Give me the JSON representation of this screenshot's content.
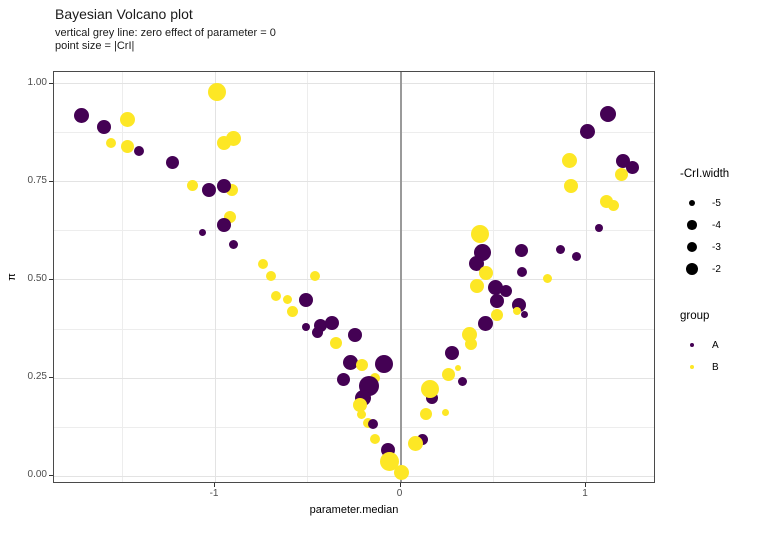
{
  "title": "Bayesian Volcano plot",
  "subtitle_line1": "vertical grey line: zero effect of parameter = 0",
  "subtitle_line2": "point size = |CrI|",
  "colors": {
    "group_A": "#440154",
    "group_B": "#FDE725",
    "refline": "#9a9a9a",
    "legend_dot": "#000000"
  },
  "axes": {
    "x": {
      "label": "parameter.median",
      "tick_labels": [
        "-1",
        "0",
        "1"
      ],
      "tick_values": [
        -1,
        0,
        1
      ],
      "minor_ticks": [
        -1.5,
        -0.5,
        0.5
      ],
      "range": [
        -1.868,
        1.377
      ]
    },
    "y": {
      "label": "π",
      "tick_labels": [
        "0.00",
        "0.25",
        "0.50",
        "0.75",
        "1.00"
      ],
      "tick_values": [
        0,
        0.25,
        0.5,
        0.75,
        1
      ],
      "minor_ticks": [
        0.125,
        0.375,
        0.625,
        0.875
      ],
      "range": [
        -0.0204,
        1.0306
      ]
    }
  },
  "legend": {
    "size": {
      "title": "-CrI.width",
      "items": [
        {
          "label": "-5",
          "d": 6.5
        },
        {
          "label": "-4",
          "d": 9.5
        },
        {
          "label": "-3",
          "d": 10.5
        },
        {
          "label": "-2",
          "d": 12
        }
      ]
    },
    "group": {
      "title": "group",
      "items": [
        {
          "label": "A",
          "color": "#440154",
          "d": 4.5
        },
        {
          "label": "B",
          "color": "#FDE725",
          "d": 4.5
        }
      ]
    }
  },
  "chart_data": {
    "type": "scatter",
    "title": "Bayesian Volcano plot",
    "xlabel": "parameter.median",
    "ylabel": "π",
    "xlim": [
      -1.868,
      1.377
    ],
    "ylim": [
      -0.02,
      1.03
    ],
    "refline_x": 0,
    "legend_position": "right",
    "grid": true,
    "series_key": "group (A = #440154 purple, B = #FDE725 yellow); s = point diameter px (size = |CrI|)",
    "points": [
      {
        "x": -1.72,
        "y": 0.92,
        "s": 15,
        "g": "A"
      },
      {
        "x": -1.6,
        "y": 0.89,
        "s": 14,
        "g": "A"
      },
      {
        "x": -1.47,
        "y": 0.91,
        "s": 15,
        "g": "B"
      },
      {
        "x": -1.56,
        "y": 0.85,
        "s": 10,
        "g": "B"
      },
      {
        "x": -1.47,
        "y": 0.84,
        "s": 13,
        "g": "B"
      },
      {
        "x": -1.41,
        "y": 0.83,
        "s": 10,
        "g": "A"
      },
      {
        "x": -1.23,
        "y": 0.8,
        "s": 13,
        "g": "A"
      },
      {
        "x": -0.99,
        "y": 0.98,
        "s": 18,
        "g": "B"
      },
      {
        "x": -0.95,
        "y": 0.85,
        "s": 14,
        "g": "B"
      },
      {
        "x": -0.9,
        "y": 0.86,
        "s": 15,
        "g": "B"
      },
      {
        "x": -1.12,
        "y": 0.74,
        "s": 11,
        "g": "B"
      },
      {
        "x": -1.03,
        "y": 0.73,
        "s": 14,
        "g": "A"
      },
      {
        "x": -0.91,
        "y": 0.73,
        "s": 12,
        "g": "B"
      },
      {
        "x": -0.95,
        "y": 0.74,
        "s": 14,
        "g": "A"
      },
      {
        "x": -0.92,
        "y": 0.66,
        "s": 12,
        "g": "B"
      },
      {
        "x": -0.95,
        "y": 0.64,
        "s": 14,
        "g": "A"
      },
      {
        "x": -1.07,
        "y": 0.62,
        "s": 7,
        "g": "A"
      },
      {
        "x": -0.9,
        "y": 0.59,
        "s": 9,
        "g": "A"
      },
      {
        "x": -0.74,
        "y": 0.54,
        "s": 10,
        "g": "B"
      },
      {
        "x": -0.7,
        "y": 0.51,
        "s": 10,
        "g": "B"
      },
      {
        "x": -0.46,
        "y": 0.51,
        "s": 10,
        "g": "B"
      },
      {
        "x": -0.67,
        "y": 0.46,
        "s": 10,
        "g": "B"
      },
      {
        "x": -0.61,
        "y": 0.45,
        "s": 9,
        "g": "B"
      },
      {
        "x": -0.51,
        "y": 0.45,
        "s": 14,
        "g": "A"
      },
      {
        "x": -0.58,
        "y": 0.42,
        "s": 11,
        "g": "B"
      },
      {
        "x": -0.51,
        "y": 0.38,
        "s": 8,
        "g": "A"
      },
      {
        "x": -0.43,
        "y": 0.385,
        "s": 13,
        "g": "A"
      },
      {
        "x": -0.37,
        "y": 0.39,
        "s": 14,
        "g": "A"
      },
      {
        "x": -0.45,
        "y": 0.365,
        "s": 11,
        "g": "A"
      },
      {
        "x": -0.35,
        "y": 0.34,
        "s": 12,
        "g": "B"
      },
      {
        "x": -0.245,
        "y": 0.36,
        "s": 14,
        "g": "A"
      },
      {
        "x": -0.27,
        "y": 0.29,
        "s": 15,
        "g": "A"
      },
      {
        "x": -0.21,
        "y": 0.283,
        "s": 12,
        "g": "B"
      },
      {
        "x": -0.09,
        "y": 0.286,
        "s": 18,
        "g": "A"
      },
      {
        "x": -0.31,
        "y": 0.245,
        "s": 13,
        "g": "A"
      },
      {
        "x": -0.14,
        "y": 0.25,
        "s": 10,
        "g": "B"
      },
      {
        "x": -0.17,
        "y": 0.23,
        "s": 20,
        "g": "A"
      },
      {
        "x": -0.2,
        "y": 0.2,
        "s": 16,
        "g": "A"
      },
      {
        "x": -0.22,
        "y": 0.18,
        "s": 14,
        "g": "B"
      },
      {
        "x": -0.21,
        "y": 0.158,
        "s": 9,
        "g": "B"
      },
      {
        "x": -0.175,
        "y": 0.135,
        "s": 10,
        "g": "B"
      },
      {
        "x": -0.148,
        "y": 0.133,
        "s": 10,
        "g": "A"
      },
      {
        "x": -0.14,
        "y": 0.095,
        "s": 10,
        "g": "B"
      },
      {
        "x": -0.067,
        "y": 0.066,
        "s": 14,
        "g": "A"
      },
      {
        "x": -0.062,
        "y": 0.038,
        "s": 19,
        "g": "B"
      },
      {
        "x": 0.003,
        "y": 0.01,
        "s": 15,
        "g": "B"
      },
      {
        "x": 0.121,
        "y": 0.092,
        "s": 11,
        "g": "A"
      },
      {
        "x": 0.078,
        "y": 0.084,
        "s": 15,
        "g": "B"
      },
      {
        "x": 0.137,
        "y": 0.158,
        "s": 12,
        "g": "B"
      },
      {
        "x": 0.245,
        "y": 0.163,
        "s": 7,
        "g": "B"
      },
      {
        "x": 0.17,
        "y": 0.2,
        "s": 12,
        "g": "A"
      },
      {
        "x": 0.159,
        "y": 0.222,
        "s": 18,
        "g": "B"
      },
      {
        "x": 0.26,
        "y": 0.26,
        "s": 13,
        "g": "B"
      },
      {
        "x": 0.31,
        "y": 0.276,
        "s": 6,
        "g": "B"
      },
      {
        "x": 0.278,
        "y": 0.314,
        "s": 14,
        "g": "A"
      },
      {
        "x": 0.332,
        "y": 0.24,
        "s": 9,
        "g": "A"
      },
      {
        "x": 0.43,
        "y": 0.617,
        "s": 18,
        "g": "B"
      },
      {
        "x": 0.44,
        "y": 0.571,
        "s": 17,
        "g": "A"
      },
      {
        "x": 0.41,
        "y": 0.541,
        "s": 15,
        "g": "A"
      },
      {
        "x": 0.46,
        "y": 0.518,
        "s": 14,
        "g": "B"
      },
      {
        "x": 0.41,
        "y": 0.485,
        "s": 14,
        "g": "B"
      },
      {
        "x": 0.51,
        "y": 0.482,
        "s": 15,
        "g": "A"
      },
      {
        "x": 0.57,
        "y": 0.472,
        "s": 12,
        "g": "A"
      },
      {
        "x": 0.52,
        "y": 0.446,
        "s": 14,
        "g": "A"
      },
      {
        "x": 0.64,
        "y": 0.436,
        "s": 14,
        "g": "A"
      },
      {
        "x": 0.63,
        "y": 0.421,
        "s": 8,
        "g": "B"
      },
      {
        "x": 0.67,
        "y": 0.411,
        "s": 7,
        "g": "A"
      },
      {
        "x": 0.52,
        "y": 0.411,
        "s": 12,
        "g": "B"
      },
      {
        "x": 0.46,
        "y": 0.388,
        "s": 15,
        "g": "A"
      },
      {
        "x": 0.37,
        "y": 0.362,
        "s": 15,
        "g": "B"
      },
      {
        "x": 0.38,
        "y": 0.337,
        "s": 12,
        "g": "B"
      },
      {
        "x": 0.65,
        "y": 0.574,
        "s": 13,
        "g": "A"
      },
      {
        "x": 0.655,
        "y": 0.52,
        "s": 10,
        "g": "A"
      },
      {
        "x": 0.79,
        "y": 0.505,
        "s": 9,
        "g": "B"
      },
      {
        "x": 0.86,
        "y": 0.577,
        "s": 9,
        "g": "A"
      },
      {
        "x": 0.95,
        "y": 0.561,
        "s": 9,
        "g": "A"
      },
      {
        "x": 1.12,
        "y": 0.923,
        "s": 16,
        "g": "A"
      },
      {
        "x": 1.01,
        "y": 0.878,
        "s": 15,
        "g": "A"
      },
      {
        "x": 0.91,
        "y": 0.806,
        "s": 15,
        "g": "B"
      },
      {
        "x": 1.2,
        "y": 0.804,
        "s": 14,
        "g": "A"
      },
      {
        "x": 1.25,
        "y": 0.786,
        "s": 13,
        "g": "A"
      },
      {
        "x": 1.19,
        "y": 0.77,
        "s": 13,
        "g": "B"
      },
      {
        "x": 0.92,
        "y": 0.74,
        "s": 14,
        "g": "B"
      },
      {
        "x": 1.11,
        "y": 0.701,
        "s": 13,
        "g": "B"
      },
      {
        "x": 1.15,
        "y": 0.689,
        "s": 11,
        "g": "B"
      },
      {
        "x": 1.07,
        "y": 0.633,
        "s": 8,
        "g": "A"
      }
    ]
  }
}
